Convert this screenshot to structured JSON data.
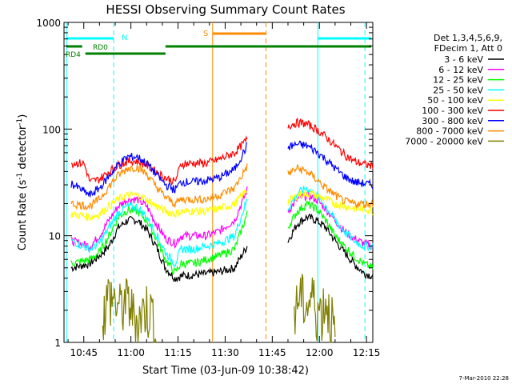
{
  "chart_data": {
    "type": "line",
    "title": "HESSI Observing Summary Count Rates",
    "xlabel": "Start Time (03-Jun-09 10:38:42)",
    "ylabel_main": "Count Rate (s",
    "ylabel_sup1": "-1",
    "ylabel_mid": " detector",
    "ylabel_sup2": "-1",
    "ylabel_end": ")",
    "yscale": "log",
    "ylim": [
      1,
      1000
    ],
    "xlim_min": [
      638.7,
      737
    ],
    "x_tick_minutes": [
      645,
      660,
      675,
      690,
      705,
      720,
      735
    ],
    "x_tick_labels": [
      "10:45",
      "11:00",
      "11:15",
      "11:30",
      "11:45",
      "12:00",
      "12:15"
    ],
    "y_ticks": [
      1,
      10,
      100,
      1000
    ],
    "y_tick_labels": [
      "1",
      "10",
      "100",
      "1000"
    ],
    "legend": {
      "header": [
        "Det 1,3,4,5,6,9,",
        "FDecim 1, Att 0"
      ],
      "placement": "right"
    },
    "footer": "7-Mar-2010 22:28",
    "series": [
      {
        "name": "3 - 6 keV",
        "color": "#000000",
        "points": [
          [
            641,
            5.0
          ],
          [
            647,
            5.5
          ],
          [
            650,
            6.5
          ],
          [
            653,
            8.0
          ],
          [
            656,
            12.0
          ],
          [
            659,
            14.0
          ],
          [
            662,
            14.0
          ],
          [
            665,
            11.5
          ],
          [
            668,
            8.0
          ],
          [
            671,
            5.0
          ],
          [
            674,
            4.0
          ],
          [
            676,
            4.2
          ],
          [
            680,
            4.3
          ],
          [
            684,
            4.4
          ],
          [
            688,
            4.6
          ],
          [
            693,
            5.0
          ],
          [
            697,
            8.0
          ]
        ]
      },
      {
        "name": "6 - 12 keV",
        "color": "#ff00ff",
        "points": [
          [
            641,
            9.0
          ],
          [
            647,
            8.0
          ],
          [
            650,
            10.0
          ],
          [
            653,
            14.0
          ],
          [
            656,
            19.0
          ],
          [
            659,
            22.0
          ],
          [
            662,
            22.0
          ],
          [
            665,
            19.0
          ],
          [
            668,
            13.0
          ],
          [
            671,
            9.5
          ],
          [
            674,
            8.5
          ],
          [
            676,
            10.0
          ],
          [
            680,
            10.0
          ],
          [
            684,
            10.0
          ],
          [
            688,
            11.0
          ],
          [
            693,
            14.0
          ],
          [
            697,
            27.0
          ]
        ]
      },
      {
        "name": "12 - 25 keV",
        "color": "#00ff00",
        "points": [
          [
            641,
            5.5
          ],
          [
            647,
            6.0
          ],
          [
            650,
            7.0
          ],
          [
            653,
            10.0
          ],
          [
            656,
            15.0
          ],
          [
            659,
            17.5
          ],
          [
            662,
            17.0
          ],
          [
            665,
            14.0
          ],
          [
            668,
            9.5
          ],
          [
            671,
            6.0
          ],
          [
            674,
            4.5
          ],
          [
            676,
            5.5
          ],
          [
            680,
            5.5
          ],
          [
            684,
            6.0
          ],
          [
            688,
            6.5
          ],
          [
            693,
            7.5
          ],
          [
            697,
            16.0
          ]
        ]
      },
      {
        "name": "25 - 50 keV",
        "color": "#00ffff",
        "points": [
          [
            641,
            9.0
          ],
          [
            647,
            7.5
          ],
          [
            650,
            8.5
          ],
          [
            653,
            12.0
          ],
          [
            656,
            16.5
          ],
          [
            659,
            19.0
          ],
          [
            662,
            18.5
          ],
          [
            665,
            15.0
          ],
          [
            668,
            10.5
          ],
          [
            671,
            7.0
          ],
          [
            674,
            5.5
          ],
          [
            676,
            7.5
          ],
          [
            680,
            7.5
          ],
          [
            684,
            8.0
          ],
          [
            688,
            8.5
          ],
          [
            693,
            10.0
          ],
          [
            697,
            22.0
          ]
        ]
      },
      {
        "name": "50 - 100 keV",
        "color": "#ffff00",
        "points": [
          [
            641,
            16.0
          ],
          [
            647,
            15.0
          ],
          [
            650,
            16.0
          ],
          [
            653,
            19.0
          ],
          [
            656,
            22.0
          ],
          [
            659,
            24.0
          ],
          [
            662,
            24.0
          ],
          [
            665,
            22.0
          ],
          [
            668,
            19.0
          ],
          [
            671,
            17.0
          ],
          [
            674,
            16.0
          ],
          [
            676,
            17.0
          ],
          [
            680,
            17.0
          ],
          [
            684,
            17.0
          ],
          [
            688,
            18.0
          ],
          [
            693,
            20.0
          ],
          [
            697,
            27.0
          ]
        ]
      },
      {
        "name": "100 - 300 keV",
        "color": "#ff0000",
        "points": [
          [
            641,
            48.0
          ],
          [
            645,
            48.0
          ],
          [
            647,
            32.0
          ],
          [
            650,
            34.0
          ],
          [
            653,
            40.0
          ],
          [
            656,
            46.0
          ],
          [
            659,
            50.0
          ],
          [
            662,
            50.0
          ],
          [
            665,
            46.0
          ],
          [
            668,
            40.0
          ],
          [
            671,
            35.0
          ],
          [
            674,
            32.0
          ],
          [
            676,
            47.0
          ],
          [
            680,
            48.0
          ],
          [
            684,
            48.0
          ],
          [
            688,
            52.0
          ],
          [
            693,
            60.0
          ],
          [
            697,
            80.0
          ]
        ]
      },
      {
        "name": "300 - 800 keV",
        "color": "#0000ff",
        "points": [
          [
            641,
            31.0
          ],
          [
            647,
            24.0
          ],
          [
            650,
            28.0
          ],
          [
            653,
            36.0
          ],
          [
            656,
            47.0
          ],
          [
            659,
            55.0
          ],
          [
            662,
            55.0
          ],
          [
            665,
            48.0
          ],
          [
            668,
            38.0
          ],
          [
            671,
            30.0
          ],
          [
            674,
            27.0
          ],
          [
            676,
            32.0
          ],
          [
            680,
            32.0
          ],
          [
            684,
            33.0
          ],
          [
            688,
            35.0
          ],
          [
            693,
            42.0
          ],
          [
            697,
            70.0
          ]
        ]
      },
      {
        "name": "800 - 7000 keV",
        "color": "#ff8c00",
        "points": [
          [
            641,
            20.0
          ],
          [
            647,
            19.0
          ],
          [
            650,
            22.0
          ],
          [
            653,
            29.0
          ],
          [
            656,
            37.0
          ],
          [
            659,
            43.0
          ],
          [
            662,
            44.0
          ],
          [
            665,
            38.0
          ],
          [
            668,
            29.0
          ],
          [
            671,
            23.0
          ],
          [
            674,
            20.0
          ],
          [
            676,
            22.0
          ],
          [
            680,
            22.0
          ],
          [
            684,
            22.0
          ],
          [
            688,
            24.0
          ],
          [
            693,
            28.0
          ],
          [
            697,
            45.0
          ]
        ]
      },
      {
        "name": "7000 - 20000 keV",
        "color": "#808000",
        "points": [
          [
            651,
            1.9
          ],
          [
            653,
            3.0
          ],
          [
            656,
            2.2
          ],
          [
            659,
            2.6
          ],
          [
            662,
            1.6
          ],
          [
            665,
            2.3
          ],
          [
            667,
            1.9
          ],
          [
            668,
            1.0
          ]
        ]
      }
    ],
    "series_after_gap": [
      {
        "name": "3 - 6 keV",
        "points": [
          [
            710,
            9.0
          ],
          [
            713,
            13.0
          ],
          [
            716,
            15.0
          ],
          [
            719,
            14.0
          ],
          [
            722,
            12.0
          ],
          [
            725,
            9.0
          ],
          [
            728,
            7.0
          ],
          [
            731,
            5.5
          ],
          [
            734,
            4.5
          ],
          [
            737,
            4.2
          ]
        ]
      },
      {
        "name": "6 - 12 keV",
        "points": [
          [
            710,
            17.0
          ],
          [
            713,
            22.0
          ],
          [
            716,
            24.0
          ],
          [
            719,
            22.0
          ],
          [
            722,
            18.0
          ],
          [
            725,
            14.0
          ],
          [
            728,
            11.0
          ],
          [
            731,
            9.5
          ],
          [
            734,
            8.5
          ],
          [
            737,
            8.0
          ]
        ]
      },
      {
        "name": "12 - 25 keV",
        "points": [
          [
            710,
            12.0
          ],
          [
            713,
            17.0
          ],
          [
            716,
            20.0
          ],
          [
            719,
            18.0
          ],
          [
            722,
            14.0
          ],
          [
            725,
            10.0
          ],
          [
            728,
            8.0
          ],
          [
            731,
            6.5
          ],
          [
            734,
            5.5
          ],
          [
            737,
            5.0
          ]
        ]
      },
      {
        "name": "25 - 50 keV",
        "points": [
          [
            710,
            18.0
          ],
          [
            713,
            25.0
          ],
          [
            716,
            28.0
          ],
          [
            719,
            24.0
          ],
          [
            722,
            19.0
          ],
          [
            725,
            14.0
          ],
          [
            728,
            11.0
          ],
          [
            731,
            9.0
          ],
          [
            734,
            8.0
          ],
          [
            737,
            8.0
          ]
        ]
      },
      {
        "name": "50 - 100 keV",
        "points": [
          [
            710,
            21.0
          ],
          [
            713,
            24.0
          ],
          [
            716,
            25.0
          ],
          [
            719,
            24.0
          ],
          [
            722,
            22.0
          ],
          [
            725,
            20.0
          ],
          [
            728,
            19.0
          ],
          [
            731,
            18.0
          ],
          [
            734,
            18.0
          ],
          [
            737,
            17.0
          ]
        ]
      },
      {
        "name": "100 - 300 keV",
        "points": [
          [
            710,
            108.0
          ],
          [
            713,
            115.0
          ],
          [
            716,
            112.0
          ],
          [
            719,
            100.0
          ],
          [
            722,
            85.0
          ],
          [
            725,
            70.0
          ],
          [
            728,
            58.0
          ],
          [
            731,
            50.0
          ],
          [
            734,
            47.0
          ],
          [
            737,
            45.0
          ]
        ]
      },
      {
        "name": "300 - 800 keV",
        "points": [
          [
            710,
            68.0
          ],
          [
            713,
            72.0
          ],
          [
            716,
            70.0
          ],
          [
            719,
            62.0
          ],
          [
            722,
            52.0
          ],
          [
            725,
            43.0
          ],
          [
            728,
            36.0
          ],
          [
            731,
            32.0
          ],
          [
            734,
            31.0
          ],
          [
            737,
            30.0
          ]
        ]
      },
      {
        "name": "800 - 7000 keV",
        "points": [
          [
            710,
            38.0
          ],
          [
            713,
            43.0
          ],
          [
            716,
            40.0
          ],
          [
            719,
            34.0
          ],
          [
            722,
            28.0
          ],
          [
            725,
            24.0
          ],
          [
            728,
            21.0
          ],
          [
            731,
            20.0
          ],
          [
            734,
            20.0
          ],
          [
            737,
            20.0
          ]
        ]
      },
      {
        "name": "7000 - 20000 keV",
        "points": [
          [
            712,
            1.9
          ],
          [
            714,
            3.0
          ],
          [
            716,
            2.2
          ],
          [
            718,
            2.8
          ],
          [
            720,
            2.0
          ],
          [
            722,
            2.5
          ],
          [
            724,
            1.8
          ],
          [
            725,
            1.0
          ]
        ]
      }
    ],
    "annotations": {
      "N_label": "N",
      "S_label": "S",
      "RD0_label": "RD0",
      "RD4_label": "RD4"
    },
    "marker_lines_minutes": {
      "cyan_solid": [
        639.5,
        719.5
      ],
      "cyan_dashed": [
        654.5,
        734.5
      ],
      "orange_solid": [
        686
      ],
      "orange_dashed": [
        703
      ]
    },
    "flag_bars": [
      {
        "color": "#00ffff",
        "segments": [
          [
            639.5,
            654.5
          ],
          [
            719.5,
            736.5
          ]
        ],
        "level": "top"
      },
      {
        "color": "#ff8c00",
        "segments": [
          [
            686,
            703
          ]
        ],
        "level": "top-mid"
      },
      {
        "color": "#008000",
        "segments": [
          [
            639.5,
            644.5
          ],
          [
            671,
            736.5
          ]
        ],
        "level": "mid"
      },
      {
        "color": "#008000",
        "segments": [
          [
            645.5,
            671
          ]
        ],
        "level": "low"
      }
    ]
  }
}
